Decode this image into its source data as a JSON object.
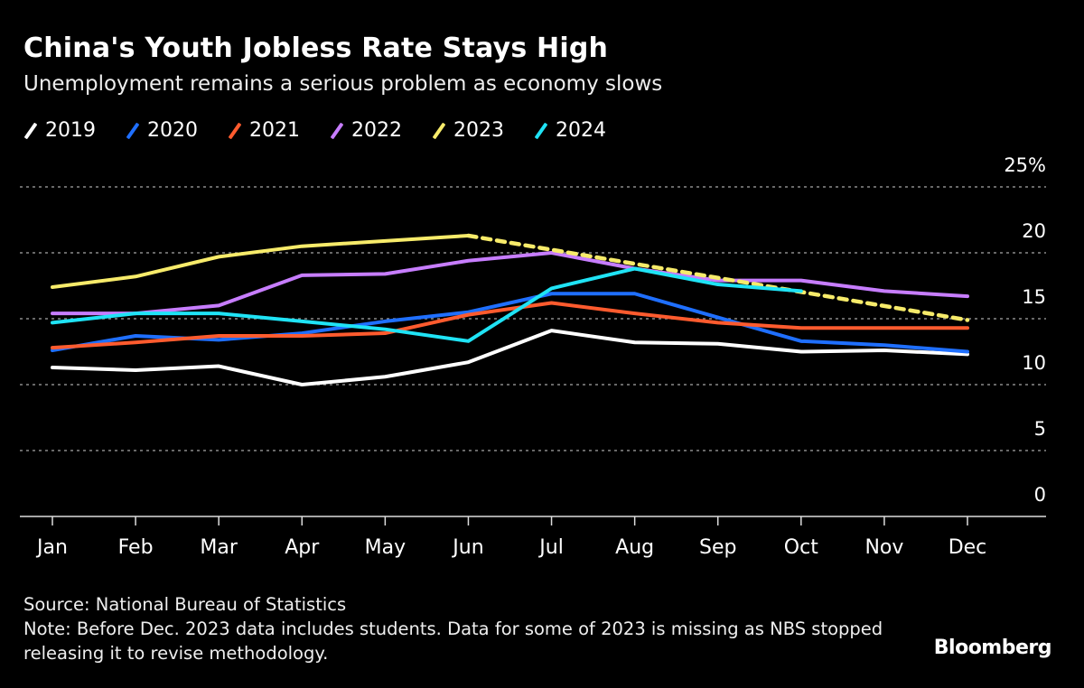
{
  "title": "China's Youth Jobless Rate Stays High",
  "subtitle": "Unemployment remains a serious problem as economy slows",
  "footer": {
    "source": "Source: National Bureau of Statistics",
    "note": "Note: Before Dec. 2023 data includes students. Data for some of 2023 is missing as NBS stopped releasing it to revise methodology."
  },
  "logo": "Bloomberg",
  "chart_data": {
    "type": "line",
    "title": "China's Youth Jobless Rate Stays High",
    "categories": [
      "Jan",
      "Feb",
      "Mar",
      "Apr",
      "May",
      "Jun",
      "Jul",
      "Aug",
      "Sep",
      "Oct",
      "Nov",
      "Dec"
    ],
    "yticks": [
      "0",
      "5",
      "10",
      "15",
      "20",
      "25%"
    ],
    "ylim": [
      0,
      25
    ],
    "grid": true,
    "legend": "top-left",
    "series": [
      {
        "name": "2019",
        "color": "#ffffff",
        "values": [
          11.3,
          11.1,
          11.4,
          10.0,
          10.6,
          11.7,
          14.1,
          13.2,
          13.1,
          12.5,
          12.6,
          12.3
        ]
      },
      {
        "name": "2020",
        "color": "#1f6fff",
        "values": [
          12.6,
          13.7,
          13.4,
          13.9,
          14.8,
          15.5,
          16.9,
          16.9,
          15.1,
          13.3,
          13.0,
          12.5
        ]
      },
      {
        "name": "2021",
        "color": "#ff5b2e",
        "values": [
          12.8,
          13.2,
          13.7,
          13.7,
          13.9,
          15.3,
          16.2,
          15.4,
          14.7,
          14.3,
          14.3,
          14.3
        ]
      },
      {
        "name": "2022",
        "color": "#c77dff",
        "values": [
          15.4,
          15.4,
          16.0,
          18.3,
          18.4,
          19.4,
          20.0,
          18.8,
          17.9,
          17.9,
          17.1,
          16.7
        ]
      },
      {
        "name": "2023",
        "color": "#f7eb6a",
        "values": [
          17.4,
          18.2,
          19.7,
          20.5,
          20.9,
          21.3,
          null,
          null,
          null,
          null,
          null,
          14.9
        ],
        "missing_style": "dotted"
      },
      {
        "name": "2024",
        "color": "#1fe3f5",
        "values": [
          14.7,
          15.4,
          15.4,
          14.8,
          14.2,
          13.3,
          17.3,
          18.8,
          17.6,
          17.1,
          null,
          null
        ]
      }
    ]
  }
}
